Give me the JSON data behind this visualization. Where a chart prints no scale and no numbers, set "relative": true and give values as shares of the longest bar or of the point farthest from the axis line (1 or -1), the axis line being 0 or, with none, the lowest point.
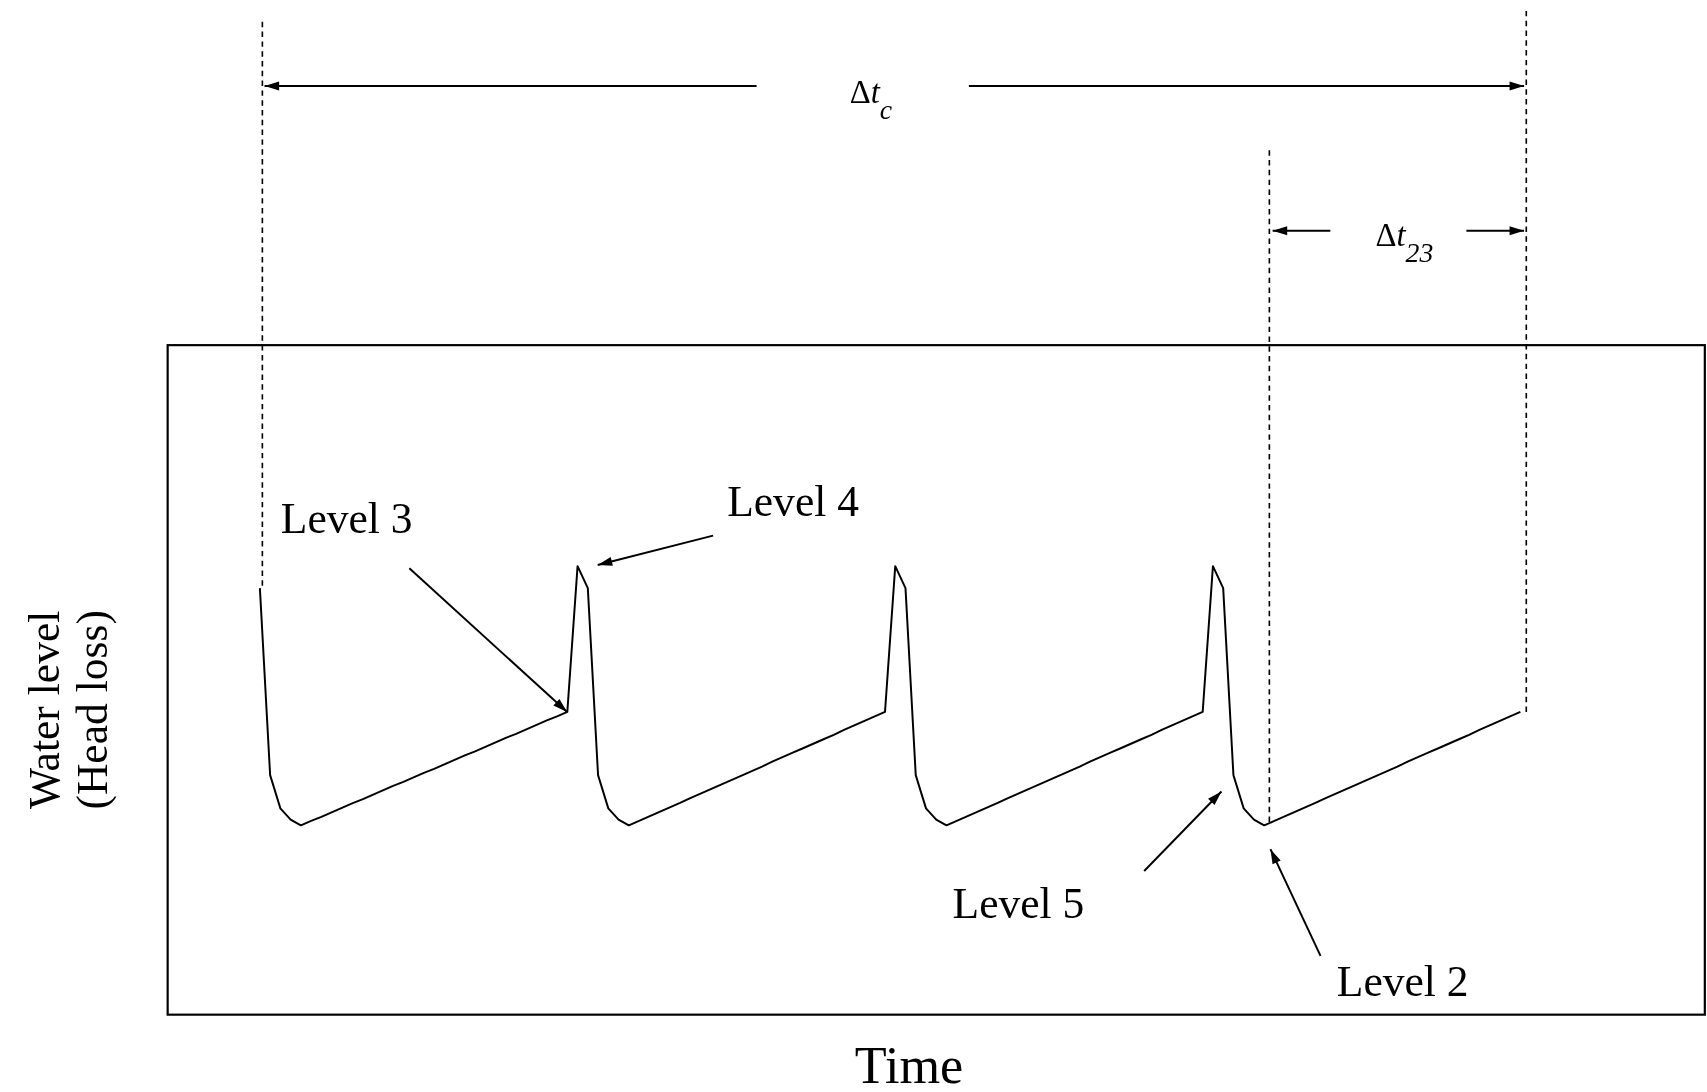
{
  "chart_data": {
    "type": "line",
    "relative": true,
    "xlabel": "Time",
    "ylabel": "Water level\n(Head loss)",
    "categories": [
      null,
      null,
      null,
      null,
      null,
      null,
      null,
      null,
      null,
      null,
      null,
      null,
      null,
      null,
      null,
      null,
      null,
      null,
      null,
      null,
      null,
      null,
      null,
      null,
      null,
      null,
      null,
      null,
      null,
      null,
      null,
      null,
      null,
      null,
      null,
      null,
      null,
      null,
      null,
      null,
      null,
      null,
      null,
      null,
      null,
      null,
      null,
      null,
      null,
      null,
      null,
      null,
      null,
      null,
      null,
      null,
      null,
      null,
      null,
      null,
      null,
      null,
      null,
      null,
      null,
      null,
      null,
      null,
      null,
      null,
      null,
      null,
      null,
      null,
      null,
      null,
      null,
      null,
      null,
      null,
      null,
      null,
      null,
      null,
      null,
      null,
      null,
      null,
      null,
      null,
      null,
      null,
      null,
      null,
      null,
      null,
      null,
      null,
      null,
      null,
      null,
      null,
      null,
      null,
      null,
      null,
      null,
      null,
      null,
      null,
      null,
      null,
      null,
      null,
      null,
      null,
      null,
      null,
      null,
      null,
      null,
      null,
      null,
      null,
      null,
      null,
      null,
      null,
      null,
      null,
      null,
      null,
      null,
      null,
      null,
      null,
      null,
      null,
      null,
      null,
      null,
      null,
      null,
      null,
      null,
      null,
      null,
      null,
      null,
      null,
      null
    ],
    "series": [
      {
        "color": "#000000",
        "values": [
          null,
          null,
          null,
          null,
          null,
          null,
          null,
          null,
          null,
          0.951,
          0.534,
          0.46,
          0.435,
          0.422,
          0.432,
          0.441,
          0.451,
          0.461,
          0.471,
          0.48,
          0.49,
          0.5,
          0.51,
          0.519,
          0.529,
          0.539,
          0.548,
          0.558,
          0.568,
          0.578,
          0.587,
          0.597,
          0.607,
          0.617,
          0.626,
          0.636,
          0.646,
          0.656,
          0.665,
          0.675,
          1,
          0.951,
          0.534,
          0.46,
          0.435,
          0.422,
          0.432,
          0.442,
          0.452,
          0.462,
          0.472,
          0.483,
          0.493,
          0.503,
          0.513,
          0.523,
          0.533,
          0.543,
          0.553,
          0.564,
          0.574,
          0.584,
          0.594,
          0.604,
          0.614,
          0.624,
          0.635,
          0.645,
          0.655,
          0.665,
          0.675,
          1,
          0.951,
          0.534,
          0.46,
          0.435,
          0.422,
          0.432,
          0.442,
          0.452,
          0.462,
          0.472,
          0.483,
          0.493,
          0.503,
          0.513,
          0.523,
          0.533,
          0.543,
          0.553,
          0.564,
          0.574,
          0.584,
          0.594,
          0.604,
          0.614,
          0.624,
          0.635,
          0.645,
          0.655,
          0.665,
          0.675,
          1,
          0.951,
          0.534,
          0.46,
          0.435,
          0.422,
          0.432,
          0.442,
          0.452,
          0.462,
          0.472,
          0.483,
          0.493,
          0.503,
          0.513,
          0.523,
          0.533,
          0.543,
          0.553,
          0.564,
          0.574,
          0.584,
          0.594,
          0.604,
          0.614,
          0.624,
          0.635,
          0.645,
          0.655,
          0.665,
          0.675,
          null,
          null,
          null,
          null,
          null,
          null,
          null,
          null,
          null,
          null,
          null,
          null,
          null,
          null,
          null,
          null,
          null,
          null
        ]
      }
    ],
    "annotations": [
      "Level 3",
      "Level 4",
      "Level 5",
      "Level 2",
      "Δt$_{c}$",
      "Δt$_{23}$"
    ]
  }
}
